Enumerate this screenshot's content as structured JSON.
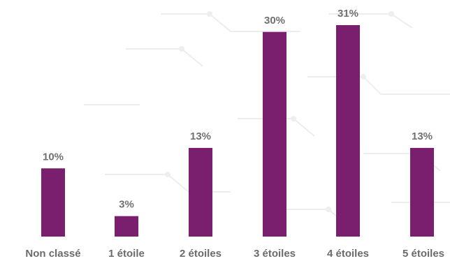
{
  "chart_data": {
    "type": "bar",
    "categories": [
      "Non classé",
      "1 étoile",
      "2 étoiles",
      "3 étoiles",
      "4 étoiles",
      "5 étoiles"
    ],
    "values": [
      10,
      3,
      13,
      30,
      31,
      13
    ],
    "value_labels": [
      "10%",
      "3%",
      "13%",
      "30%",
      "31%",
      "13%"
    ],
    "ylim": [
      0,
      31
    ],
    "grid": false,
    "legend": "none",
    "bar_color": "#7a1f6e",
    "label_color": "#6b6b6b"
  }
}
